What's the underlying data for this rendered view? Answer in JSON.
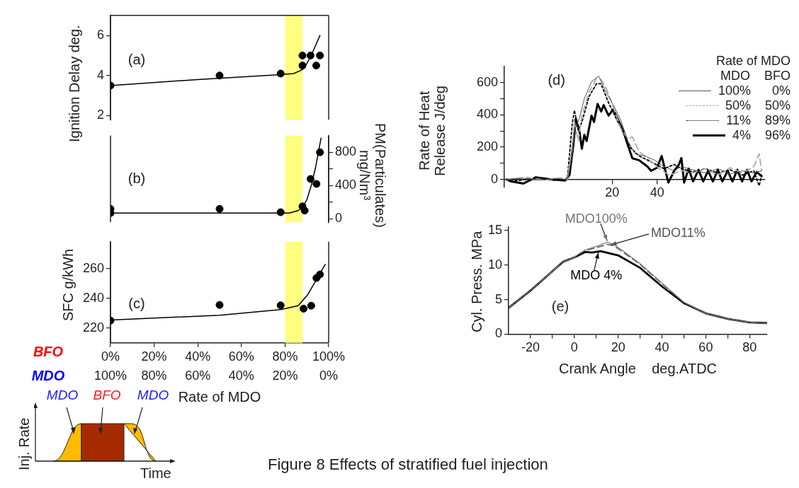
{
  "chart_data": [
    {
      "type": "scatter",
      "ylabel": "Ignition Delay  deg.",
      "annotations": [
        "(a)"
      ],
      "xlim": [
        0,
        100
      ],
      "ylim": [
        1.8,
        7
      ],
      "yticks": [
        2,
        4,
        6
      ],
      "tick_labels": "y",
      "bands": [
        {
          "axis": "x",
          "from": 80,
          "to": 88,
          "color": "#ffff80"
        }
      ],
      "series": [
        {
          "type": "scatter",
          "marker": "circle",
          "color": "#000000",
          "x": [
            0,
            50,
            78,
            88,
            88,
            91.7,
            94.3,
            96
          ],
          "values": [
            3.5,
            4.0,
            4.1,
            5.0,
            4.5,
            5.0,
            4.5,
            5.0
          ]
        },
        {
          "type": "line",
          "marker": "none",
          "color": "#000000",
          "x": [
            0,
            40,
            78,
            84,
            88,
            90,
            92,
            94,
            96
          ],
          "values": [
            3.5,
            3.8,
            4.05,
            4.1,
            4.3,
            4.6,
            5.0,
            5.5,
            6.0
          ]
        }
      ]
    },
    {
      "type": "scatter",
      "y2label": "PM(Particulates)  mg/Nm³",
      "annotations": [
        "(b)"
      ],
      "xlim": [
        0,
        100
      ],
      "y2lim": [
        -40,
        1000
      ],
      "y2ticks": [
        0,
        {
          "value": 200,
          "label": null
        },
        400,
        {
          "value": 600,
          "label": null
        },
        800
      ],
      "tick_labels": "y",
      "bands": [
        {
          "axis": "x",
          "from": 80,
          "to": 88,
          "color": "#ffff80"
        }
      ],
      "series": [
        {
          "type": "scatter",
          "marker": "circle",
          "color": "#000000",
          "axis": "y2",
          "x": [
            0,
            0,
            50,
            78,
            88,
            89,
            91.7,
            94.4,
            96
          ],
          "values": [
            120,
            70,
            120,
            80,
            150,
            100,
            480,
            420,
            800
          ]
        },
        {
          "type": "line",
          "marker": "none",
          "color": "#000000",
          "axis": "y2",
          "x": [
            0,
            40,
            78,
            82,
            86,
            88,
            90,
            92,
            94,
            96.5
          ],
          "values": [
            70,
            70,
            70,
            70,
            100,
            140,
            230,
            400,
            620,
            970
          ]
        }
      ]
    },
    {
      "type": "scatter",
      "ylabel": "SFC  g/kWh",
      "xlabel": "Rate of MDO",
      "annotations": [
        "(c)",
        "BFO",
        "MDO"
      ],
      "xlim": [
        0,
        100
      ],
      "ylim": [
        210,
        278
      ],
      "yticks": [
        220,
        240,
        260
      ],
      "xticks": [
        {
          "value": 0,
          "label": "0%"
        },
        {
          "value": 20,
          "label": "20%"
        },
        {
          "value": 40,
          "label": "40%"
        },
        {
          "value": 60,
          "label": "60%"
        },
        {
          "value": 80,
          "label": "80%"
        },
        {
          "value": 100,
          "label": "100%"
        }
      ],
      "x2lim": [
        100,
        0
      ],
      "x2ticks": [
        {
          "value": 100,
          "label": "100%"
        },
        {
          "value": 80,
          "label": "80%"
        },
        {
          "value": 60,
          "label": "60%"
        },
        {
          "value": 40,
          "label": "40%"
        },
        {
          "value": 20,
          "label": "20%"
        },
        {
          "value": 0,
          "label": "0%"
        }
      ],
      "bands": [
        {
          "axis": "x",
          "from": 80,
          "to": 88,
          "color": "#ffff80"
        }
      ],
      "series": [
        {
          "type": "scatter",
          "marker": "circle",
          "color": "#000000",
          "x": [
            0,
            50,
            78,
            88.5,
            92,
            94.4,
            96
          ],
          "values": [
            225,
            235.5,
            235.2,
            233,
            235,
            253.6,
            256
          ]
        },
        {
          "type": "line",
          "marker": "none",
          "color": "#000000",
          "x": [
            0,
            50,
            78,
            86,
            90.5,
            94.8,
            98.4
          ],
          "values": [
            225.3,
            228.6,
            232.4,
            235,
            242.6,
            253.6,
            262.8
          ]
        }
      ]
    },
    {
      "type": "line",
      "ylabel": "Rate of Heat Release  J/deg",
      "annotations": [
        "(d)",
        "MDO    BFO"
      ],
      "legend": "top right",
      "legend_title": "Rate of MDO",
      "xlim": [
        -28,
        88
      ],
      "ylim": [
        -50,
        700
      ],
      "xticks": [
        20,
        40
      ],
      "yticks": [
        0,
        {
          "value": 100,
          "label": null
        },
        200,
        {
          "value": 300,
          "label": null
        },
        400,
        {
          "value": 500,
          "label": null
        },
        600
      ],
      "series": [
        {
          "name": "100%      0%",
          "color": "#555555",
          "line_style": "solid",
          "x": [
            -27,
            -20,
            -12,
            -5,
            0,
            0.5,
            2.2,
            3.2,
            5.4,
            7.6,
            10.8,
            14,
            17.3,
            20.5,
            23.8,
            27,
            30.3,
            34.6,
            39,
            43,
            47.6,
            50.8,
            56,
            61.6,
            67,
            72.4,
            78,
            83,
            86.5
          ],
          "values": [
            0,
            8,
            -5,
            5,
            0,
            20,
            150,
            300,
            380,
            500,
            605,
            640,
            540,
            460,
            368,
            237,
            158,
            145,
            118,
            79,
            53,
            79,
            59,
            39,
            66,
            33,
            53,
            40,
            53
          ]
        },
        {
          "name": "50%    50%",
          "color": "#aaaaaa",
          "line_style": "dashed",
          "x": [
            -27,
            -18,
            -10,
            -3,
            0,
            2.2,
            3.2,
            4.9,
            6.5,
            9.7,
            13,
            15,
            17.3,
            20.5,
            23.8,
            27,
            29,
            32,
            36.7,
            41,
            45.4,
            50.8,
            56,
            61.6,
            67,
            72.4,
            78,
            83,
            85.4,
            86.5
          ],
          "values": [
            0,
            12,
            -5,
            10,
            0,
            210,
            355,
            237,
            395,
            540,
            625,
            618,
            566,
            447,
            316,
            250,
            263,
            171,
            118,
            66,
            26,
            53,
            40,
            66,
            26,
            72,
            40,
            79,
            158,
            53
          ]
        },
        {
          "name": "11%    89%",
          "color": "#000000",
          "line_style": "dotted",
          "x": [
            -27,
            -22,
            -15,
            -6,
            0,
            2.2,
            3.2,
            4.9,
            6.5,
            9.7,
            13,
            15,
            18.4,
            21.6,
            24.9,
            28,
            32,
            37.8,
            43,
            47.6,
            50.8,
            56,
            61.6,
            67,
            72.4,
            78,
            83,
            85.4,
            86.5
          ],
          "values": [
            0,
            -8,
            6,
            -5,
            0,
            342,
            428,
            303,
            355,
            513,
            592,
            592,
            474,
            382,
            290,
            197,
            145,
            105,
            66,
            92,
            66,
            46,
            66,
            40,
            59,
            26,
            53,
            -40,
            26
          ]
        },
        {
          "name": "4%    96%",
          "color": "#000000",
          "line_style": "solid",
          "x": [
            -27,
            -25,
            -19.5,
            -14,
            -7.6,
            -1,
            1,
            2.7,
            3.8,
            5.4,
            6.5,
            7.6,
            8.6,
            10.8,
            11.9,
            13.5,
            15.1,
            16.2,
            18.4,
            20.5,
            22.7,
            24.9,
            27,
            29,
            32,
            35.7,
            37.3,
            40,
            42,
            45,
            47.6,
            49.7,
            50.8,
            52,
            54,
            56,
            58.4,
            60.5,
            62.7,
            64.8,
            67,
            69,
            71.4,
            73.5,
            75.7,
            77.8,
            80,
            82,
            84.3,
            86.5
          ],
          "values": [
            0,
            -13,
            -26,
            13,
            0,
            -7,
            26,
            210,
            375,
            300,
            190,
            276,
            237,
            395,
            355,
            467,
            420,
            460,
            395,
            434,
            368,
            300,
            210,
            130,
            118,
            79,
            53,
            72,
            145,
            -20,
            53,
            92,
            132,
            -20,
            66,
            -13,
            59,
            -13,
            53,
            -13,
            59,
            -13,
            53,
            -13,
            59,
            -13,
            59,
            -13,
            46,
            20
          ]
        }
      ]
    },
    {
      "type": "line",
      "ylabel": "Cyl. Press.  MPa",
      "xlabel": "Crank Angle    deg.ATDC",
      "annotations": [
        "(e)"
      ],
      "xlim": [
        -30,
        88
      ],
      "ylim": [
        0,
        15.5
      ],
      "xticks": [
        -20,
        {
          "value": -10,
          "label": null
        },
        0,
        {
          "value": 10,
          "label": null
        },
        20,
        {
          "value": 30,
          "label": null
        },
        40,
        {
          "value": 50,
          "label": null
        },
        60,
        {
          "value": 70,
          "label": null
        },
        80
      ],
      "yticks": [
        0,
        5,
        10,
        15
      ],
      "series": [
        {
          "name": "MDO100%",
          "color": "#777777",
          "line_style": "solid",
          "x": [
            -30,
            -20,
            -10,
            -5,
            0,
            2,
            5,
            10,
            15,
            18,
            22,
            30,
            40,
            50,
            60,
            70,
            80,
            88
          ],
          "values": [
            3.8,
            6.3,
            9.1,
            10.5,
            11.1,
            11.6,
            12.2,
            12.7,
            13.3,
            13.0,
            12.1,
            10.2,
            7.4,
            4.6,
            3.0,
            2.2,
            1.7,
            1.6
          ]
        },
        {
          "name": "MDO11%",
          "color": "#555555",
          "line_style": "dashed",
          "x": [
            -30,
            -20,
            -10,
            -5,
            0,
            2,
            5,
            10,
            15,
            18,
            22,
            30,
            40,
            50,
            60,
            70,
            80,
            88
          ],
          "values": [
            3.8,
            6.3,
            9.1,
            10.5,
            11.1,
            11.5,
            12.1,
            12.5,
            13.0,
            12.8,
            11.9,
            10.1,
            7.3,
            4.6,
            3.0,
            2.2,
            1.7,
            1.6
          ]
        },
        {
          "name": "MDO 4%",
          "color": "#000000",
          "line_style": "solid",
          "x": [
            -30,
            -20,
            -10,
            -5,
            0,
            5,
            8,
            12,
            20,
            30,
            40,
            50,
            60,
            70,
            80,
            88
          ],
          "values": [
            3.8,
            6.3,
            9.1,
            10.5,
            11.1,
            11.9,
            11.8,
            12.0,
            11.4,
            9.6,
            6.9,
            4.5,
            3.0,
            2.2,
            1.7,
            1.6
          ]
        }
      ]
    },
    {
      "type": "other",
      "xlabel": "Time",
      "ylabel": "Inj. Rate",
      "annotations": [
        "MDO",
        "BFO",
        "MDO"
      ]
    },
    {
      "type": "other",
      "title": "Figure 8 Effects of stratified fuel injection"
    }
  ]
}
